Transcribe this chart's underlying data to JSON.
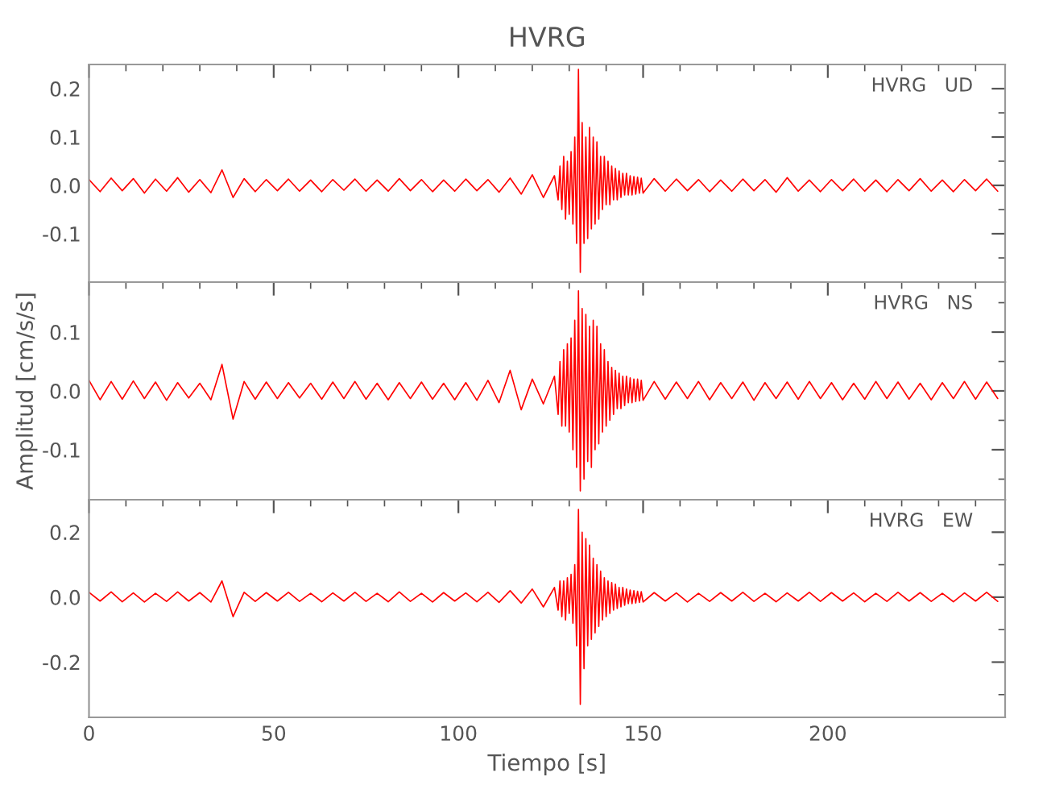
{
  "chart_data": [
    {
      "type": "line",
      "title": "HVRG",
      "annotations": [
        "HVRG   UD"
      ],
      "xlim": [
        0,
        248
      ],
      "xticks": [
        0,
        50,
        100,
        150,
        200
      ],
      "ylim": [
        -0.2,
        0.25
      ],
      "yticks": [
        {
          "value": -0.1,
          "label": "-0.1"
        },
        {
          "value": 0.0,
          "label": "0.0"
        },
        {
          "value": 0.1,
          "label": "0.1"
        },
        {
          "value": 0.2,
          "label": "0.2"
        }
      ],
      "tick_labels": "y",
      "grid": false,
      "marker": "none",
      "line_style": "solid",
      "x": [
        0,
        3,
        6,
        9,
        12,
        15,
        18,
        21,
        24,
        27,
        30,
        33,
        36,
        39,
        42,
        45,
        48,
        51,
        54,
        57,
        60,
        63,
        66,
        69,
        72,
        75,
        78,
        81,
        84,
        87,
        90,
        93,
        96,
        99,
        102,
        105,
        108,
        111,
        114,
        117,
        120,
        123,
        126,
        127,
        127.5,
        128,
        128.5,
        129,
        129.5,
        130,
        130.5,
        131,
        131.5,
        132,
        132.5,
        133,
        133.5,
        134,
        134.5,
        135,
        135.5,
        136,
        136.5,
        137,
        137.5,
        138,
        138.5,
        139,
        139.5,
        140,
        140.5,
        141,
        141.5,
        142,
        142.5,
        143,
        143.5,
        144,
        144.5,
        145,
        145.5,
        146,
        146.5,
        147,
        147.5,
        148,
        148.5,
        149,
        149.5,
        150,
        153,
        156,
        159,
        162,
        165,
        168,
        171,
        174,
        177,
        180,
        183,
        186,
        189,
        192,
        195,
        198,
        201,
        204,
        207,
        210,
        213,
        216,
        219,
        222,
        225,
        228,
        231,
        234,
        237,
        240,
        243,
        246
      ],
      "series": [
        {
          "color": "#ff0000",
          "values": [
            0.012,
            -0.013,
            0.015,
            -0.011,
            0.014,
            -0.016,
            0.013,
            -0.012,
            0.016,
            -0.014,
            0.012,
            -0.015,
            0.032,
            -0.025,
            0.014,
            -0.013,
            0.012,
            -0.011,
            0.013,
            -0.012,
            0.011,
            -0.013,
            0.012,
            -0.01,
            0.013,
            -0.012,
            0.011,
            -0.012,
            0.014,
            -0.011,
            0.012,
            -0.013,
            0.011,
            -0.012,
            0.013,
            -0.011,
            0.012,
            -0.014,
            0.015,
            -0.018,
            0.022,
            -0.025,
            0.02,
            -0.03,
            0.04,
            -0.05,
            0.06,
            -0.07,
            0.05,
            -0.06,
            0.07,
            -0.08,
            0.1,
            -0.12,
            0.24,
            -0.18,
            0.13,
            -0.12,
            0.1,
            -0.11,
            0.12,
            -0.09,
            0.1,
            -0.08,
            0.09,
            -0.07,
            0.06,
            -0.05,
            0.06,
            -0.04,
            0.05,
            -0.04,
            0.04,
            -0.03,
            0.035,
            -0.03,
            0.03,
            -0.025,
            0.025,
            -0.02,
            0.025,
            -0.02,
            0.02,
            -0.02,
            0.018,
            -0.018,
            0.017,
            -0.016,
            0.015,
            -0.016,
            0.014,
            -0.012,
            0.013,
            -0.011,
            0.012,
            -0.013,
            0.011,
            -0.012,
            0.013,
            -0.011,
            0.012,
            -0.014,
            0.016,
            -0.012,
            0.011,
            -0.013,
            0.012,
            -0.011,
            0.013,
            -0.012,
            0.011,
            -0.013,
            0.012,
            -0.011,
            0.014,
            -0.012,
            0.011,
            -0.013,
            0.012,
            -0.011,
            0.013,
            -0.012
          ]
        }
      ]
    },
    {
      "type": "line",
      "ylabel": "Amplitud [cm/s/s]",
      "annotations": [
        "HVRG   NS"
      ],
      "xlim": [
        0,
        248
      ],
      "xticks": [
        0,
        50,
        100,
        150,
        200
      ],
      "ylim": [
        -0.185,
        0.185
      ],
      "yticks": [
        {
          "value": -0.1,
          "label": "-0.1"
        },
        {
          "value": 0.0,
          "label": "0.0"
        },
        {
          "value": 0.1,
          "label": "0.1"
        }
      ],
      "tick_labels": "y",
      "grid": false,
      "marker": "none",
      "line_style": "solid",
      "x": [
        0,
        3,
        6,
        9,
        12,
        15,
        18,
        21,
        24,
        27,
        30,
        33,
        36,
        39,
        42,
        45,
        48,
        51,
        54,
        57,
        60,
        63,
        66,
        69,
        72,
        75,
        78,
        81,
        84,
        87,
        90,
        93,
        96,
        99,
        102,
        105,
        108,
        111,
        114,
        117,
        120,
        123,
        126,
        127,
        127.5,
        128,
        128.5,
        129,
        129.5,
        130,
        130.5,
        131,
        131.5,
        132,
        132.5,
        133,
        133.5,
        134,
        134.5,
        135,
        135.5,
        136,
        136.5,
        137,
        137.5,
        138,
        138.5,
        139,
        139.5,
        140,
        140.5,
        141,
        141.5,
        142,
        142.5,
        143,
        143.5,
        144,
        144.5,
        145,
        145.5,
        146,
        146.5,
        147,
        147.5,
        148,
        148.5,
        149,
        149.5,
        150,
        153,
        156,
        159,
        162,
        165,
        168,
        171,
        174,
        177,
        180,
        183,
        186,
        189,
        192,
        195,
        198,
        201,
        204,
        207,
        210,
        213,
        216,
        219,
        222,
        225,
        228,
        231,
        234,
        237,
        240,
        243,
        246
      ],
      "series": [
        {
          "color": "#ff0000",
          "values": [
            0.018,
            -0.015,
            0.016,
            -0.014,
            0.017,
            -0.013,
            0.015,
            -0.016,
            0.014,
            -0.012,
            0.013,
            -0.015,
            0.045,
            -0.048,
            0.016,
            -0.014,
            0.015,
            -0.013,
            0.014,
            -0.012,
            0.013,
            -0.014,
            0.015,
            -0.013,
            0.016,
            -0.014,
            0.013,
            -0.015,
            0.014,
            -0.013,
            0.015,
            -0.014,
            0.013,
            -0.015,
            0.014,
            -0.016,
            0.018,
            -0.02,
            0.035,
            -0.032,
            0.02,
            -0.022,
            0.025,
            -0.04,
            0.05,
            -0.06,
            0.07,
            -0.06,
            0.08,
            -0.07,
            0.09,
            -0.1,
            0.12,
            -0.13,
            0.17,
            -0.17,
            0.14,
            -0.15,
            0.13,
            -0.12,
            0.11,
            -0.13,
            0.12,
            -0.1,
            0.11,
            -0.09,
            0.08,
            -0.07,
            0.07,
            -0.06,
            0.05,
            -0.05,
            0.04,
            -0.04,
            0.035,
            -0.03,
            0.03,
            -0.03,
            0.025,
            -0.025,
            0.025,
            -0.02,
            0.022,
            -0.02,
            0.02,
            -0.018,
            0.02,
            -0.017,
            0.018,
            -0.016,
            0.016,
            -0.014,
            0.015,
            -0.013,
            0.016,
            -0.015,
            0.014,
            -0.013,
            0.015,
            -0.016,
            0.014,
            -0.013,
            0.015,
            -0.014,
            0.016,
            -0.013,
            0.014,
            -0.015,
            0.013,
            -0.014,
            0.016,
            -0.013,
            0.015,
            -0.014,
            0.013,
            -0.015,
            0.014,
            -0.013,
            0.016,
            -0.014,
            0.015,
            -0.013
          ]
        }
      ]
    },
    {
      "type": "line",
      "xlabel": "Tiempo [s]",
      "annotations": [
        "HVRG   EW"
      ],
      "xlim": [
        0,
        248
      ],
      "xticks": [
        0,
        50,
        100,
        150,
        200
      ],
      "ylim": [
        -0.37,
        0.3
      ],
      "yticks": [
        {
          "value": -0.2,
          "label": "-0.2"
        },
        {
          "value": 0.0,
          "label": "0.0"
        },
        {
          "value": 0.2,
          "label": "0.2"
        }
      ],
      "grid": false,
      "marker": "none",
      "line_style": "solid",
      "x": [
        0,
        3,
        6,
        9,
        12,
        15,
        18,
        21,
        24,
        27,
        30,
        33,
        36,
        39,
        42,
        45,
        48,
        51,
        54,
        57,
        60,
        63,
        66,
        69,
        72,
        75,
        78,
        81,
        84,
        87,
        90,
        93,
        96,
        99,
        102,
        105,
        108,
        111,
        114,
        117,
        120,
        123,
        126,
        127,
        127.5,
        128,
        128.5,
        129,
        129.5,
        130,
        130.5,
        131,
        131.5,
        132,
        132.5,
        133,
        133.5,
        134,
        134.5,
        135,
        135.5,
        136,
        136.5,
        137,
        137.5,
        138,
        138.5,
        139,
        139.5,
        140,
        140.5,
        141,
        141.5,
        142,
        142.5,
        143,
        143.5,
        144,
        144.5,
        145,
        145.5,
        146,
        146.5,
        147,
        147.5,
        148,
        148.5,
        149,
        149.5,
        150,
        153,
        156,
        159,
        162,
        165,
        168,
        171,
        174,
        177,
        180,
        183,
        186,
        189,
        192,
        195,
        198,
        201,
        204,
        207,
        210,
        213,
        216,
        219,
        222,
        225,
        228,
        231,
        234,
        237,
        240,
        243,
        246
      ],
      "series": [
        {
          "color": "#ff0000",
          "values": [
            0.015,
            -0.012,
            0.016,
            -0.014,
            0.013,
            -0.015,
            0.012,
            -0.013,
            0.016,
            -0.012,
            0.014,
            -0.015,
            0.05,
            -0.06,
            0.015,
            -0.013,
            0.014,
            -0.012,
            0.015,
            -0.013,
            0.012,
            -0.014,
            0.013,
            -0.012,
            0.015,
            -0.013,
            0.012,
            -0.014,
            0.016,
            -0.013,
            0.012,
            -0.015,
            0.014,
            -0.012,
            0.013,
            -0.014,
            0.015,
            -0.016,
            0.02,
            -0.018,
            0.025,
            -0.03,
            0.03,
            -0.04,
            0.05,
            -0.06,
            0.05,
            -0.07,
            0.06,
            -0.05,
            0.07,
            -0.08,
            0.1,
            -0.15,
            0.27,
            -0.33,
            0.2,
            -0.22,
            0.18,
            -0.15,
            0.16,
            -0.13,
            0.12,
            -0.11,
            0.1,
            -0.09,
            0.08,
            -0.07,
            0.06,
            -0.06,
            0.05,
            -0.05,
            0.045,
            -0.04,
            0.04,
            -0.035,
            0.03,
            -0.03,
            0.03,
            -0.025,
            0.025,
            -0.02,
            0.022,
            -0.02,
            0.02,
            -0.018,
            0.018,
            -0.016,
            0.017,
            -0.015,
            0.014,
            -0.012,
            0.013,
            -0.015,
            0.012,
            -0.013,
            0.014,
            -0.012,
            0.015,
            -0.013,
            0.012,
            -0.014,
            0.013,
            -0.012,
            0.015,
            -0.013,
            0.014,
            -0.012,
            0.013,
            -0.014,
            0.012,
            -0.013,
            0.015,
            -0.012,
            0.014,
            -0.013,
            0.012,
            -0.014,
            0.013,
            -0.012,
            0.015,
            -0.013
          ]
        }
      ]
    }
  ]
}
